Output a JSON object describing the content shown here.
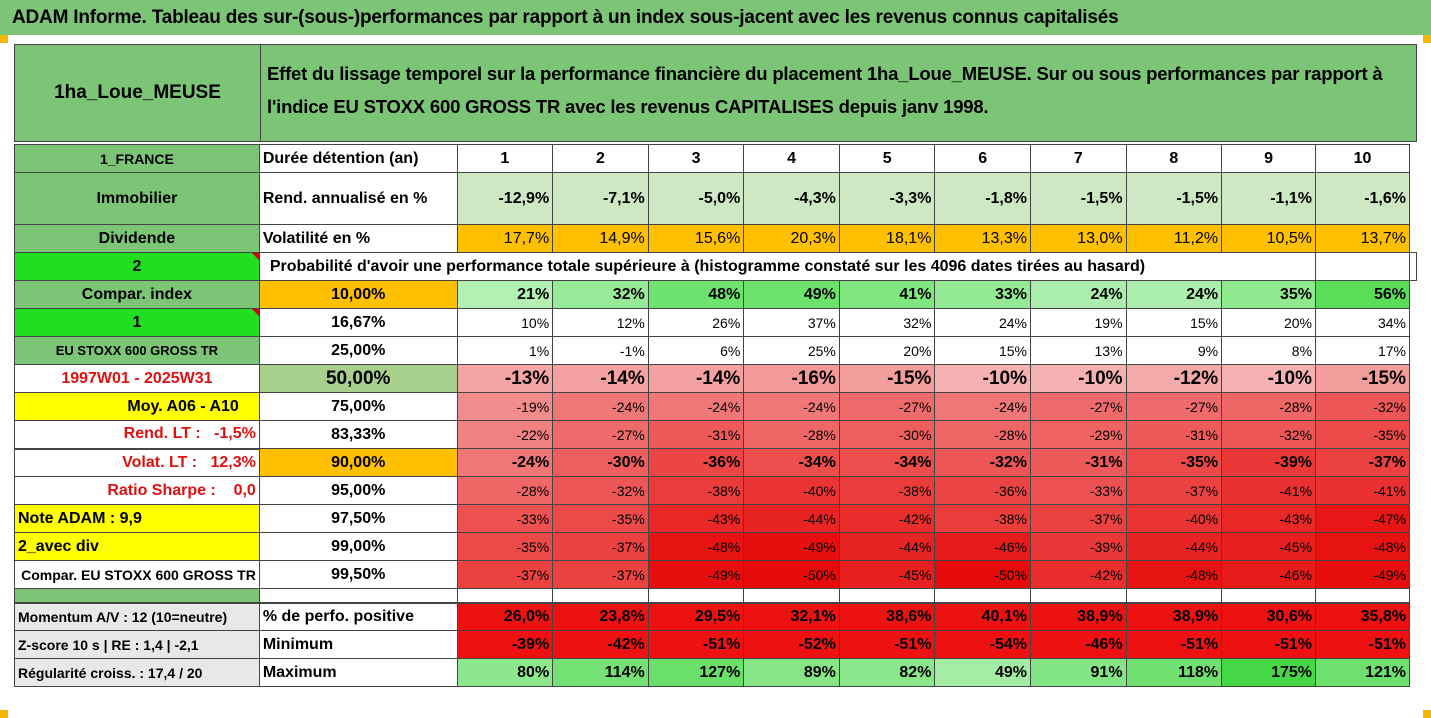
{
  "title": "ADAM Informe. Tableau des sur-(sous-)performances par rapport à un index sous-jacent avec les revenus connus capitalisés",
  "header": {
    "fund": "1ha_Loue_MEUSE",
    "desc_line1": "Effet du lissage temporel sur la performance financière du placement 1ha_Loue_MEUSE. Sur ou sous performances par rapport à",
    "desc_line2": "l'indice EU STOXX 600 GROSS TR avec les revenus CAPITALISES depuis janv 1998."
  },
  "side": {
    "country": "1_FRANCE",
    "asset": "Immobilier",
    "income": "Dividende",
    "n2": "2",
    "compar": "Compar. index",
    "n1": "1",
    "index": "EU STOXX 600 GROSS TR",
    "period": "1997W01 - 2025W31",
    "moy": "Moy. A06 - A10",
    "rend_lt": "Rend. LT :   -1,5%",
    "volat_lt": "Volat. LT :   12,3%",
    "sharpe": "Ratio Sharpe :    0,0",
    "note": "Note ADAM : 9,9",
    "avec_div": "2_avec div",
    "compar_eu": "Compar. EU STOXX 600 GROSS TR",
    "momentum": "Momentum A/V : 12 (10=neutre)",
    "zscore": "Z-score 10 s  |  RE : 1,4  |  -2,1",
    "regul": "Régularité croiss. : 17,4 / 20"
  },
  "labels": {
    "duree": "Durée détention (an)",
    "rend": "Rend. annualisé en %",
    "vol": "Volatilité en %",
    "proba": "Probabilité d'avoir une performance totale supérieure à (histogramme constaté sur les 4096 dates tirées au hasard)",
    "perf_pos": "% de perfo. positive",
    "minimum": "Minimum",
    "maximum": "Maximum"
  },
  "years": [
    "1",
    "2",
    "3",
    "4",
    "5",
    "6",
    "7",
    "8",
    "9",
    "10"
  ],
  "rend": [
    "-12,9%",
    "-7,1%",
    "-5,0%",
    "-4,3%",
    "-3,3%",
    "-1,8%",
    "-1,5%",
    "-1,5%",
    "-1,1%",
    "-1,6%"
  ],
  "vol": [
    "17,7%",
    "14,9%",
    "15,6%",
    "20,3%",
    "18,1%",
    "13,3%",
    "13,0%",
    "11,2%",
    "10,5%",
    "13,7%"
  ],
  "quantiles": [
    {
      "p": "10,00%",
      "v": [
        "21%",
        "32%",
        "48%",
        "49%",
        "41%",
        "33%",
        "24%",
        "24%",
        "35%",
        "56%"
      ]
    },
    {
      "p": "16,67%",
      "v": [
        "10%",
        "12%",
        "26%",
        "37%",
        "32%",
        "24%",
        "19%",
        "15%",
        "20%",
        "34%"
      ]
    },
    {
      "p": "25,00%",
      "v": [
        "1%",
        "-1%",
        "6%",
        "25%",
        "20%",
        "15%",
        "13%",
        "9%",
        "8%",
        "17%"
      ]
    },
    {
      "p": "50,00%",
      "v": [
        "-13%",
        "-14%",
        "-14%",
        "-16%",
        "-15%",
        "-10%",
        "-10%",
        "-12%",
        "-10%",
        "-15%"
      ]
    },
    {
      "p": "75,00%",
      "v": [
        "-19%",
        "-24%",
        "-24%",
        "-24%",
        "-27%",
        "-24%",
        "-27%",
        "-27%",
        "-28%",
        "-32%"
      ]
    },
    {
      "p": "83,33%",
      "v": [
        "-22%",
        "-27%",
        "-31%",
        "-28%",
        "-30%",
        "-28%",
        "-29%",
        "-31%",
        "-32%",
        "-35%"
      ]
    },
    {
      "p": "90,00%",
      "v": [
        "-24%",
        "-30%",
        "-36%",
        "-34%",
        "-34%",
        "-32%",
        "-31%",
        "-35%",
        "-39%",
        "-37%"
      ]
    },
    {
      "p": "95,00%",
      "v": [
        "-28%",
        "-32%",
        "-38%",
        "-40%",
        "-38%",
        "-36%",
        "-33%",
        "-37%",
        "-41%",
        "-41%"
      ]
    },
    {
      "p": "97,50%",
      "v": [
        "-33%",
        "-35%",
        "-43%",
        "-44%",
        "-42%",
        "-38%",
        "-37%",
        "-40%",
        "-43%",
        "-47%"
      ]
    },
    {
      "p": "99,00%",
      "v": [
        "-35%",
        "-37%",
        "-48%",
        "-49%",
        "-44%",
        "-46%",
        "-39%",
        "-44%",
        "-45%",
        "-48%"
      ]
    },
    {
      "p": "99,50%",
      "v": [
        "-37%",
        "-37%",
        "-49%",
        "-50%",
        "-45%",
        "-50%",
        "-42%",
        "-48%",
        "-46%",
        "-49%"
      ]
    }
  ],
  "perf_pos": [
    "26,0%",
    "23,8%",
    "29,5%",
    "32,1%",
    "38,6%",
    "40,1%",
    "38,9%",
    "38,9%",
    "30,6%",
    "35,8%"
  ],
  "minimum": [
    "-39%",
    "-42%",
    "-51%",
    "-52%",
    "-51%",
    "-54%",
    "-46%",
    "-51%",
    "-51%",
    "-51%"
  ],
  "maximum": [
    "80%",
    "114%",
    "127%",
    "89%",
    "82%",
    "49%",
    "91%",
    "118%",
    "175%",
    "121%"
  ],
  "colors": {
    "header_green": "#7cc576",
    "orange": "#ffc000",
    "yellow": "#ffff00",
    "bright_green": "#22dd22",
    "red_text": "#e01010"
  }
}
